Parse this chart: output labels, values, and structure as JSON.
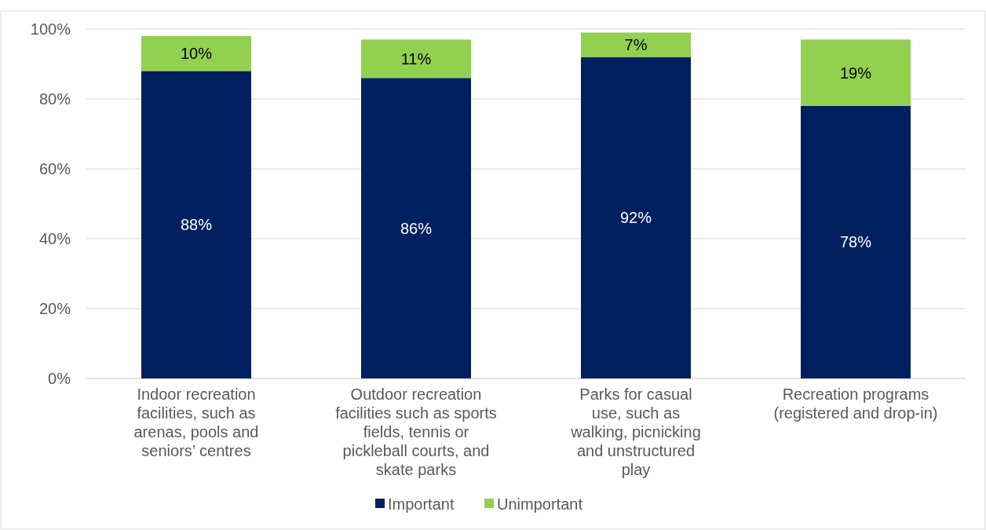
{
  "chart_data": {
    "type": "bar",
    "stacked": true,
    "categories": [
      "Indoor recreation facilities, such as arenas, pools and seniors’ centres",
      "Outdoor recreation facilities such as sports fields, tennis or pickleball courts, and skate parks",
      "Parks for casual use, such as walking, picnicking and unstructured play",
      "Recreation programs (registered and drop-in)"
    ],
    "series": [
      {
        "name": "Important",
        "color": "#002060",
        "values": [
          88,
          86,
          92,
          78
        ]
      },
      {
        "name": "Unimportant",
        "color": "#92d050",
        "values": [
          10,
          11,
          7,
          19
        ]
      }
    ],
    "value_labels": [
      [
        "88%",
        "86%",
        "92%",
        "78%"
      ],
      [
        "10%",
        "11%",
        "7%",
        "19%"
      ]
    ],
    "ylim": [
      0,
      100
    ],
    "yticks": [
      {
        "value": 0,
        "label": "0%"
      },
      {
        "value": 20,
        "label": "20%"
      },
      {
        "value": 40,
        "label": "40%"
      },
      {
        "value": 60,
        "label": "60%"
      },
      {
        "value": 80,
        "label": "80%"
      },
      {
        "value": 100,
        "label": "100%"
      }
    ],
    "grid": "y",
    "legend": "bottom"
  }
}
